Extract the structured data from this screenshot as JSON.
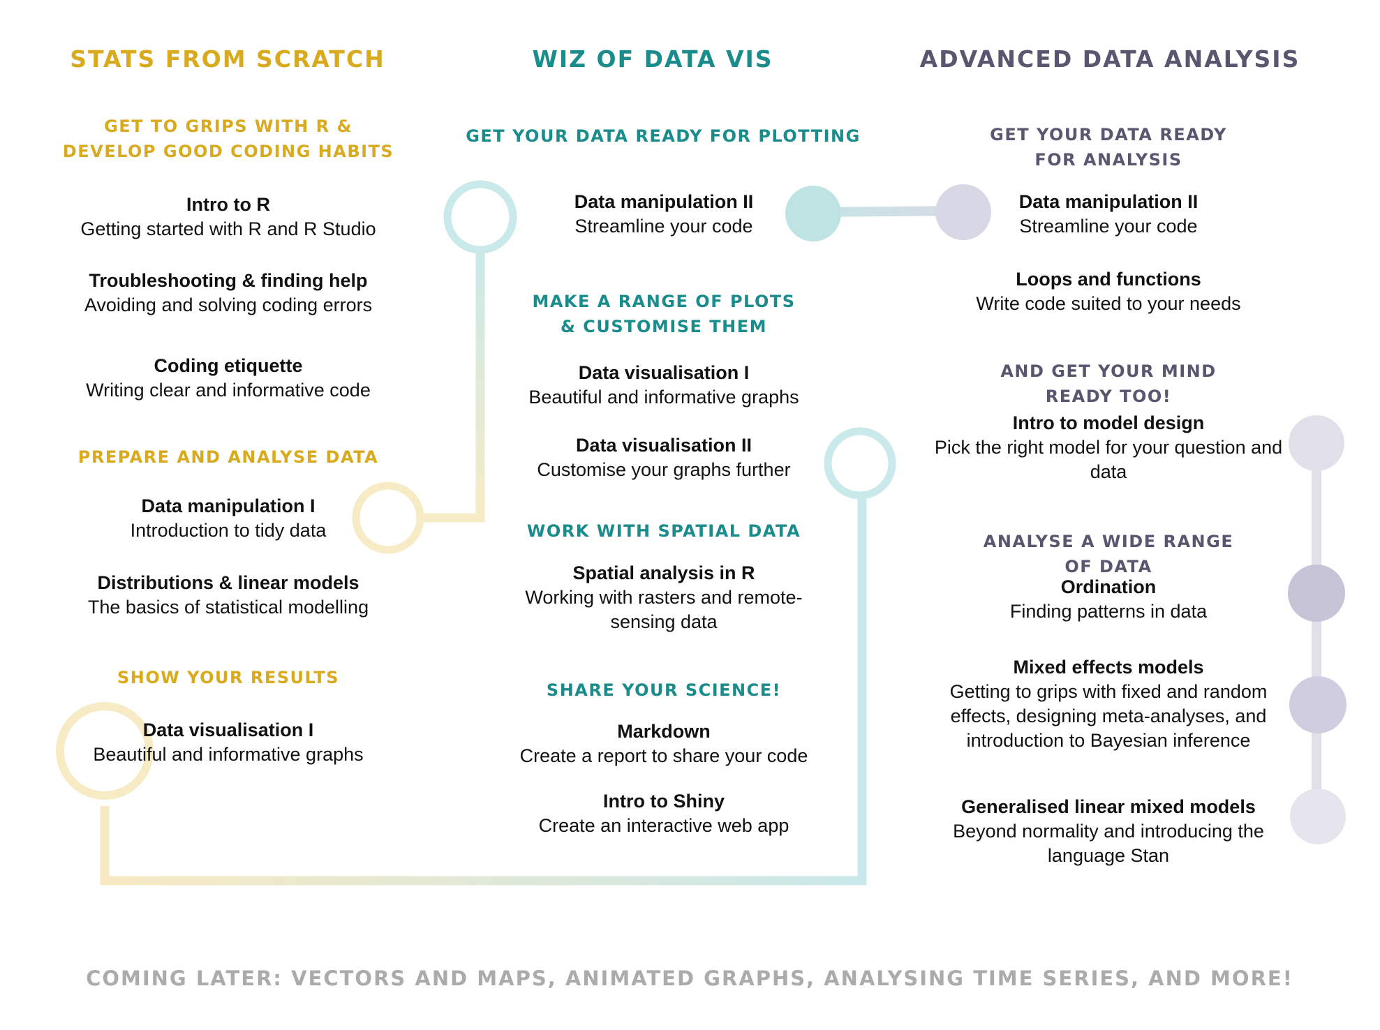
{
  "columns": [
    {
      "title": "STATS FROM SCRATCH",
      "color": "#d9aa1e"
    },
    {
      "title": "WIZ OF DATA VIS",
      "color": "#1a8c8c"
    },
    {
      "title": "ADVANCED DATA ANALYSIS",
      "color": "#5a5670"
    }
  ],
  "col1": {
    "sec1": "GET TO GRIPS WITH R &\nDEVELOP GOOD CODING HABITS",
    "i1": {
      "title": "Intro to R",
      "desc": "Getting started with R and R Studio"
    },
    "i2": {
      "title": "Troubleshooting & finding help",
      "desc": "Avoiding and solving coding errors"
    },
    "i3": {
      "title": "Coding etiquette",
      "desc": "Writing clear and informative code"
    },
    "sec2": "PREPARE AND ANALYSE DATA",
    "i4": {
      "title": "Data manipulation I",
      "desc": "Introduction to tidy data"
    },
    "i5": {
      "title": "Distributions & linear models",
      "desc": "The basics of statistical modelling"
    },
    "sec3": "SHOW YOUR RESULTS",
    "i6": {
      "title": "Data visualisation I",
      "desc": "Beautiful and informative graphs"
    }
  },
  "col2": {
    "sec1": "GET YOUR DATA READY FOR PLOTTING",
    "i1": {
      "title": "Data manipulation II",
      "desc": "Streamline your code"
    },
    "sec2": "MAKE A RANGE OF PLOTS\n& CUSTOMISE THEM",
    "i2": {
      "title": "Data visualisation I",
      "desc": "Beautiful and informative graphs"
    },
    "i3": {
      "title": "Data visualisation II",
      "desc": "Customise your graphs further"
    },
    "sec3": "WORK WITH SPATIAL DATA",
    "i4": {
      "title": "Spatial analysis in R",
      "desc": "Working with rasters and remote-sensing data"
    },
    "sec4": "SHARE YOUR SCIENCE!",
    "i5": {
      "title": "Markdown",
      "desc": "Create a report to share your code"
    },
    "i6": {
      "title": "Intro to Shiny",
      "desc": "Create an interactive web app"
    }
  },
  "col3": {
    "sec1": "GET YOUR DATA READY FOR ANALYSIS",
    "i1": {
      "title": "Data manipulation II",
      "desc": "Streamline your code"
    },
    "i2": {
      "title": "Loops and functions",
      "desc": "Write code suited to your needs"
    },
    "sec2": "AND GET YOUR MIND READY TOO!",
    "i3": {
      "title": "Intro to model design",
      "desc": "Pick the right model for your question and data"
    },
    "sec3": "ANALYSE A WIDE RANGE OF DATA",
    "i4": {
      "title": "Ordination",
      "desc": "Finding patterns in data"
    },
    "i5": {
      "title": "Mixed effects models",
      "desc": "Getting to grips with fixed and random effects, designing meta-analyses, and introduction to Bayesian inference"
    },
    "i6": {
      "title": "Generalised linear mixed models",
      "desc": "Beyond normality and introducing the language Stan"
    }
  },
  "footer": "COMING LATER: VECTORS AND MAPS,  ANIMATED GRAPHS, ANALYSING TIME SERIES, AND MORE!"
}
